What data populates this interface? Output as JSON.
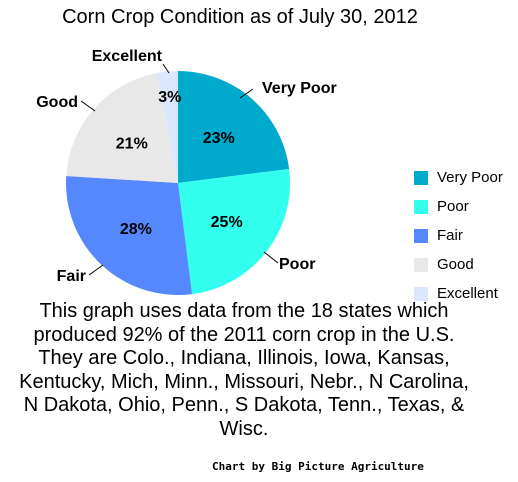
{
  "chart_data": {
    "type": "pie",
    "title": "Corn Crop Condition as of July 30, 2012",
    "slices": [
      {
        "name": "Very Poor",
        "value": 23,
        "label": "23%",
        "color": "#00aacc"
      },
      {
        "name": "Poor",
        "value": 25,
        "label": "25%",
        "color": "#33ffee"
      },
      {
        "name": "Fair",
        "value": 28,
        "label": "28%",
        "color": "#5588ff"
      },
      {
        "name": "Good",
        "value": 21,
        "label": "21%",
        "color": "#e8e8e8"
      },
      {
        "name": "Excellent",
        "value": 3,
        "label": "3%",
        "color": "#dde6ff"
      }
    ],
    "legend_position": "right"
  },
  "caption": "This graph uses data from the 18 states which produced 92% of the 2011 corn crop in the U.S. They are Colo., Indiana, Illinois, Iowa, Kansas, Kentucky, Mich, Minn., Missouri, Nebr., N Carolina, N Dakota, Ohio, Penn., S Dakota, Tenn., Texas, & Wisc.",
  "credit": "Chart by Big Picture Agriculture"
}
